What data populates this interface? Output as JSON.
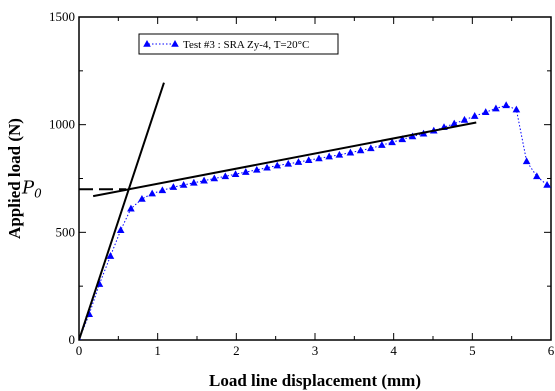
{
  "chart_data": {
    "type": "scatter",
    "xlabel": "Load line displacement (mm)",
    "ylabel": "Applied load (N)",
    "xlim": [
      0,
      6
    ],
    "ylim": [
      0,
      1500
    ],
    "x_ticks": [
      "0",
      "1",
      "2",
      "3",
      "4",
      "5",
      "6"
    ],
    "y_ticks": [
      "0",
      "500",
      "1000",
      "1500"
    ],
    "grid": false,
    "legend_position": "top-left",
    "annotation": {
      "base": "P",
      "subscript": "0",
      "value": 700
    },
    "series": [
      {
        "name": "Test #3 : SRA Zy-4, T=20°C",
        "color": "#0000ff",
        "marker": "triangle",
        "line_style": "dotted",
        "x": [
          0.0,
          0.13,
          0.26,
          0.4,
          0.53,
          0.66,
          0.8,
          0.93,
          1.06,
          1.2,
          1.33,
          1.46,
          1.59,
          1.72,
          1.86,
          1.99,
          2.12,
          2.26,
          2.39,
          2.52,
          2.66,
          2.79,
          2.92,
          3.05,
          3.18,
          3.31,
          3.45,
          3.58,
          3.71,
          3.85,
          3.98,
          4.11,
          4.24,
          4.38,
          4.51,
          4.64,
          4.77,
          4.9,
          5.03,
          5.17,
          5.3,
          5.43,
          5.56,
          5.69,
          5.82,
          5.95,
          6.08
        ],
        "y": [
          0,
          120,
          260,
          390,
          510,
          610,
          655,
          680,
          695,
          710,
          720,
          730,
          740,
          750,
          760,
          770,
          780,
          790,
          800,
          810,
          818,
          826,
          835,
          843,
          852,
          860,
          870,
          880,
          890,
          905,
          918,
          932,
          945,
          958,
          972,
          988,
          1005,
          1022,
          1040,
          1058,
          1075,
          1090,
          1070,
          830,
          760,
          720,
          705
        ]
      }
    ],
    "tangent_lines": [
      {
        "x": [
          0.0,
          1.08
        ],
        "y": [
          0,
          1195
        ]
      },
      {
        "x": [
          0.18,
          5.05
        ],
        "y": [
          668,
          1010
        ]
      }
    ],
    "horizontal_dashed_line": {
      "x": [
        0.0,
        0.6
      ],
      "y": 700
    }
  }
}
